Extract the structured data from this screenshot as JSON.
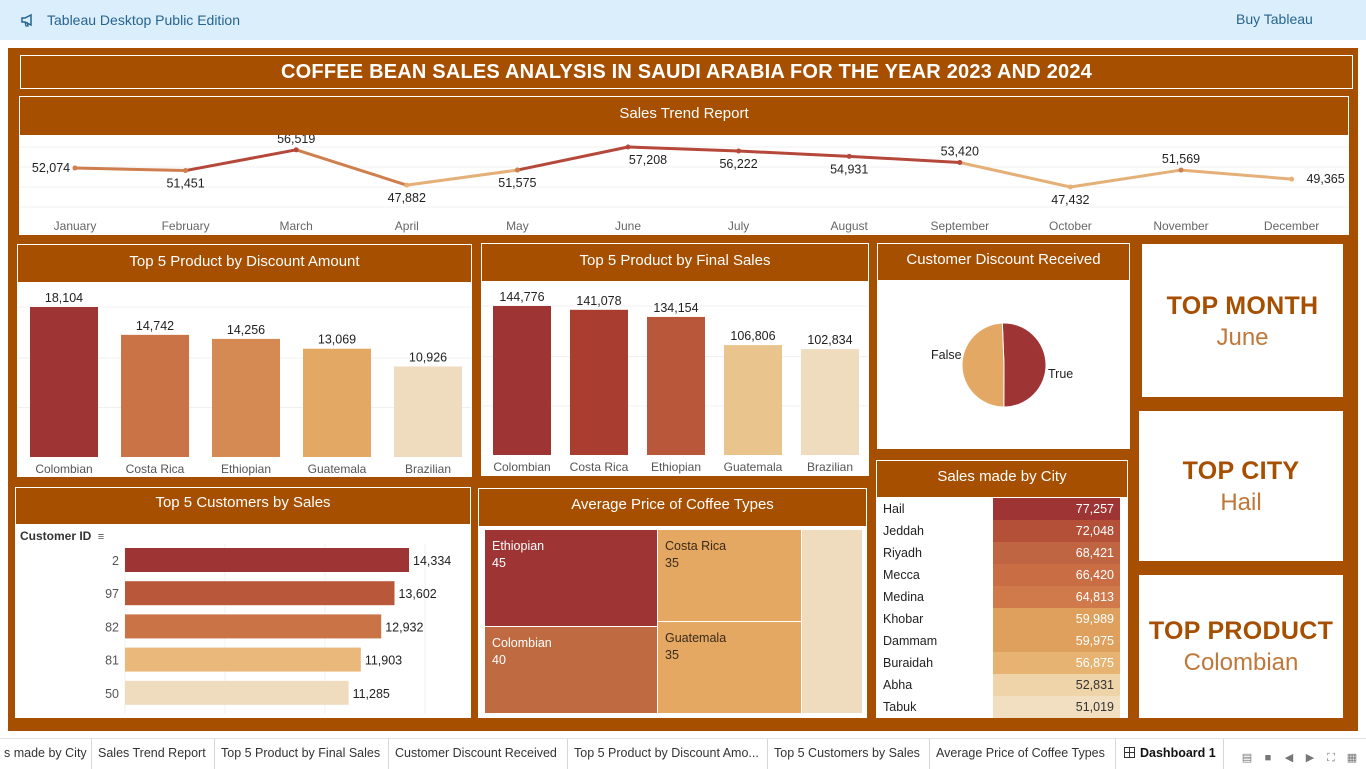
{
  "app": {
    "title": "Tableau Desktop Public Edition",
    "buy_label": "Buy Tableau"
  },
  "dashboard_title": "COFFEE BEAN SALES ANALYSIS IN SAUDI ARABIA FOR THE YEAR 2023 AND 2024",
  "colors": {
    "primary": "#a64f00",
    "dark_red": "#9e3433",
    "rust": "#b9573a",
    "terracotta": "#c97346",
    "orange": "#d48a52",
    "sand": "#e4a865",
    "light_sand": "#eac48d",
    "cream": "#efdbbe"
  },
  "sales_trend": {
    "title": "Sales Trend Report",
    "chart_data": {
      "type": "line",
      "x": [
        "January",
        "February",
        "March",
        "April",
        "May",
        "June",
        "July",
        "August",
        "September",
        "October",
        "November",
        "December"
      ],
      "values": [
        52074,
        51451,
        56519,
        47882,
        51575,
        57208,
        56222,
        54931,
        53420,
        47432,
        51569,
        49365
      ],
      "labels": [
        "52,074",
        "51,451",
        "56,519",
        "47,882",
        "51,575",
        "57,208",
        "56,222",
        "54,931",
        "53,420",
        "47,432",
        "51,569",
        "49,365"
      ]
    }
  },
  "discount_products": {
    "title": "Top 5 Product by Discount Amount",
    "chart_data": {
      "type": "bar",
      "categories": [
        "Colombian",
        "Costa Rica",
        "Ethiopian",
        "Guatemala",
        "Brazilian"
      ],
      "values": [
        18104,
        14742,
        14256,
        13069,
        10926
      ],
      "labels": [
        "18,104",
        "14,742",
        "14,256",
        "13,069",
        "10,926"
      ],
      "colors": [
        "#9e3433",
        "#c97346",
        "#d48a52",
        "#e4a865",
        "#efdbbe"
      ]
    }
  },
  "final_sales_products": {
    "title": "Top 5 Product by Final Sales",
    "chart_data": {
      "type": "bar",
      "categories": [
        "Colombian",
        "Costa Rica",
        "Ethiopian",
        "Guatemala",
        "Brazilian"
      ],
      "values": [
        144776,
        141078,
        134154,
        106806,
        102834
      ],
      "labels": [
        "144,776",
        "141,078",
        "134,154",
        "106,806",
        "102,834"
      ],
      "colors": [
        "#9e3433",
        "#a93d30",
        "#b9573a",
        "#eac48d",
        "#efdbbe"
      ]
    }
  },
  "discount_received": {
    "title": "Customer Discount Received",
    "chart_data": {
      "type": "pie",
      "categories": [
        "True",
        "False"
      ],
      "values": [
        50.7,
        49.3
      ],
      "colors": [
        "#9e3433",
        "#e4a865"
      ]
    }
  },
  "kpis": {
    "month": {
      "label": "TOP MONTH",
      "value": "June"
    },
    "city": {
      "label": "TOP CITY",
      "value": "Hail"
    },
    "product": {
      "label": "TOP PRODUCT",
      "value": "Colombian"
    }
  },
  "top_customers": {
    "title": "Top 5 Customers by Sales",
    "axis_header": "Customer ID",
    "chart_data": {
      "type": "bar",
      "orientation": "horizontal",
      "categories": [
        "2",
        "97",
        "82",
        "81",
        "50"
      ],
      "values": [
        14334,
        13602,
        12932,
        11903,
        11285
      ],
      "labels": [
        "14,334",
        "13,602",
        "12,932",
        "11,903",
        "11,285"
      ],
      "colors": [
        "#9e3433",
        "#b9573a",
        "#c97346",
        "#eab87a",
        "#efdbbe"
      ]
    }
  },
  "avg_price": {
    "title": "Average Price of Coffee Types",
    "chart_data": {
      "type": "treemap",
      "items": [
        {
          "name": "Ethiopian",
          "value": 45,
          "color": "#9e3433"
        },
        {
          "name": "Colombian",
          "value": 40,
          "color": "#c06a42"
        },
        {
          "name": "Costa Rica",
          "value": 35,
          "color": "#e4a862"
        },
        {
          "name": "Guatemala",
          "value": 35,
          "color": "#e4a862"
        },
        {
          "name": "",
          "value": 30,
          "color": "#efdbbe"
        }
      ]
    }
  },
  "city_sales": {
    "title": "Sales made by City",
    "rows": [
      {
        "city": "Hail",
        "value": "77,257",
        "color": "#9e3433"
      },
      {
        "city": "Jeddah",
        "value": "72,048",
        "color": "#b44f38"
      },
      {
        "city": "Riyadh",
        "value": "68,421",
        "color": "#c06542"
      },
      {
        "city": "Mecca",
        "value": "66,420",
        "color": "#c96d45"
      },
      {
        "city": "Medina",
        "value": "64,813",
        "color": "#d07a4b"
      },
      {
        "city": "Khobar",
        "value": "59,989",
        "color": "#e0a05d"
      },
      {
        "city": "Dammam",
        "value": "59,975",
        "color": "#e0a05d"
      },
      {
        "city": "Buraidah",
        "value": "56,875",
        "color": "#e7b372"
      },
      {
        "city": "Abha",
        "value": "52,831",
        "color": "#efd3a9"
      },
      {
        "city": "Tabuk",
        "value": "51,019",
        "color": "#f2dfc2"
      }
    ]
  },
  "tabs": [
    {
      "label": "s made by City"
    },
    {
      "label": "Sales Trend Report"
    },
    {
      "label": "Top 5 Product by Final Sales"
    },
    {
      "label": "Customer Discount Received"
    },
    {
      "label": "Top 5 Product by Discount Amo..."
    },
    {
      "label": "Top 5 Customers by Sales"
    },
    {
      "label": "Average Price of Coffee Types"
    },
    {
      "label": "Dashboard 1"
    }
  ]
}
